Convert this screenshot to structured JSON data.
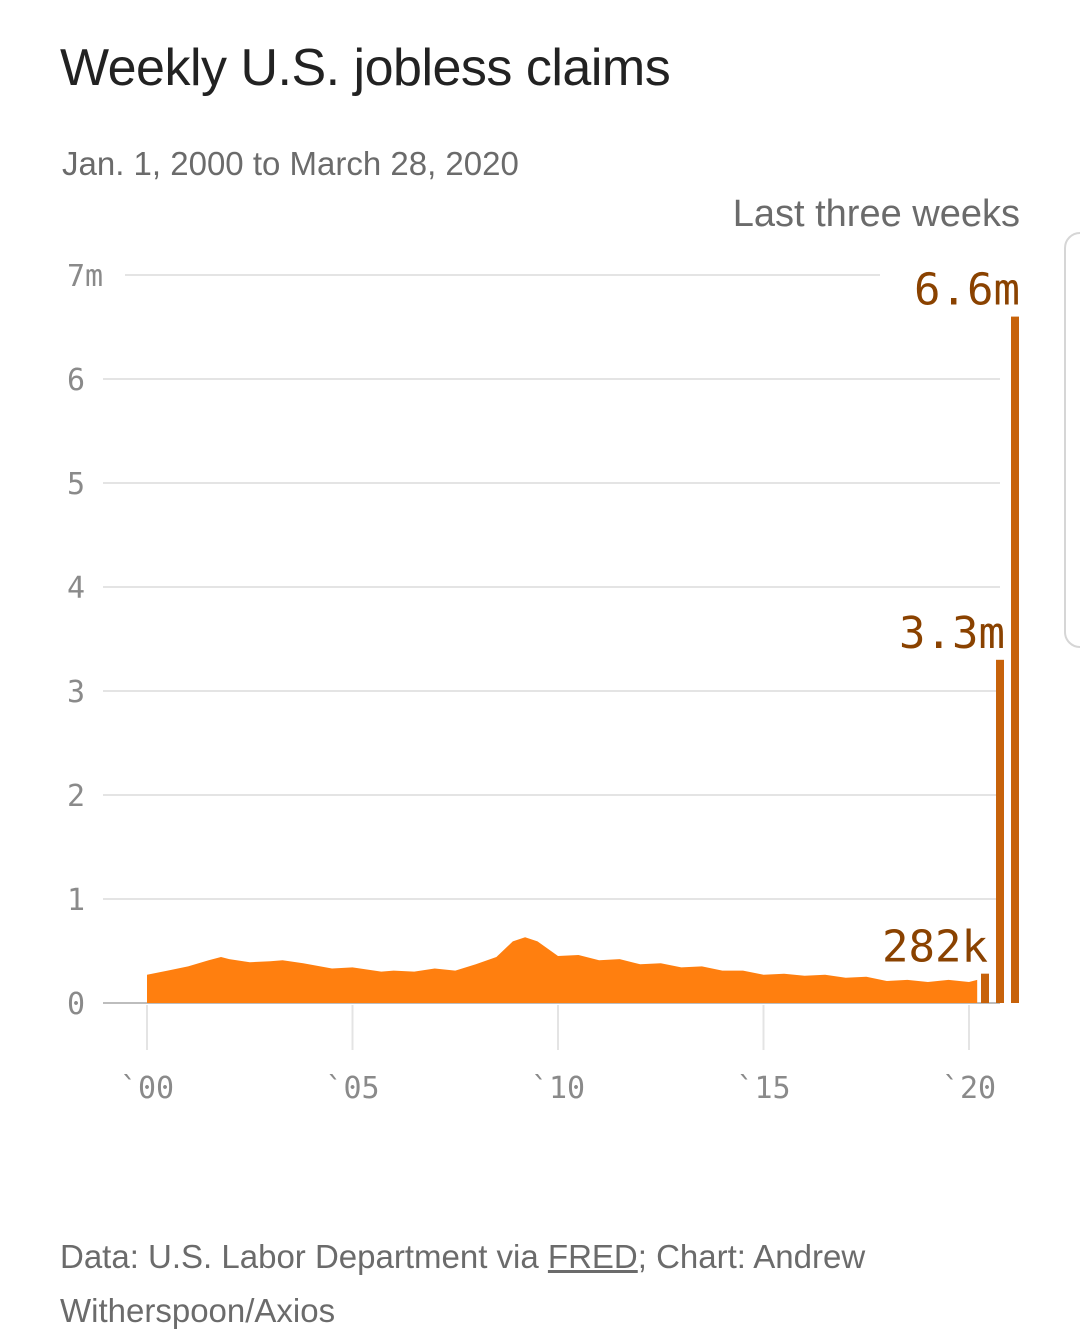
{
  "title": "Weekly U.S. jobless claims",
  "subtitle": "Jan. 1, 2000 to March 28, 2020",
  "annotation_heading": "Last three weeks",
  "source": {
    "prefix": "Data: U.S. Labor Department via ",
    "link": "FRED",
    "suffix": "; Chart: Andrew Witherspoon/Axios"
  },
  "colors": {
    "area": "#ff7f0f",
    "spike_bars": "#c7620a",
    "annotation_text": "#8a4200",
    "grid": "#e4e4e4",
    "tick_text": "#8a8a8a",
    "text": "#222222",
    "muted_text": "#6b6b6b"
  },
  "chart_data": {
    "type": "area",
    "title": "Weekly U.S. jobless claims",
    "subtitle": "Jan. 1, 2000 to March 28, 2020",
    "ylabel": "",
    "xlabel": "",
    "y_unit_label": "m",
    "ylim": [
      0,
      7
    ],
    "y_ticks": [
      0,
      1,
      2,
      3,
      4,
      5,
      6,
      7
    ],
    "y_tick_labels": [
      "0",
      "1",
      "2",
      "3",
      "4",
      "5",
      "6",
      "7m"
    ],
    "x_ticks": [
      2000,
      2005,
      2010,
      2015,
      2020
    ],
    "x_tick_labels": [
      "`00",
      "`05",
      "`10",
      "`15",
      "`20"
    ],
    "grid": true,
    "series": [
      {
        "kind": "area",
        "x": [
          2000.0,
          2000.5,
          2001.0,
          2001.5,
          2001.8,
          2002.0,
          2002.5,
          2003.0,
          2003.3,
          2003.8,
          2004.5,
          2005.0,
          2005.7,
          2006.0,
          2006.5,
          2007.0,
          2007.5,
          2008.0,
          2008.5,
          2008.9,
          2009.2,
          2009.5,
          2010.0,
          2010.5,
          2011.0,
          2011.5,
          2012.0,
          2012.5,
          2013.0,
          2013.5,
          2014.0,
          2014.5,
          2015.0,
          2015.5,
          2016.0,
          2016.5,
          2017.0,
          2017.5,
          2018.0,
          2018.5,
          2019.0,
          2019.5,
          2020.0,
          2020.2
        ],
        "y": [
          0.28,
          0.3,
          0.36,
          0.4,
          0.45,
          0.41,
          0.4,
          0.39,
          0.42,
          0.37,
          0.34,
          0.33,
          0.31,
          0.3,
          0.31,
          0.32,
          0.32,
          0.36,
          0.45,
          0.58,
          0.64,
          0.58,
          0.46,
          0.45,
          0.42,
          0.41,
          0.38,
          0.37,
          0.35,
          0.34,
          0.32,
          0.3,
          0.28,
          0.27,
          0.27,
          0.26,
          0.25,
          0.24,
          0.22,
          0.21,
          0.21,
          0.21,
          0.21,
          0.21
        ]
      }
    ],
    "highlighted_bars": [
      {
        "label": "282k",
        "value": 0.282
      },
      {
        "label": "3.3m",
        "value": 3.3
      },
      {
        "label": "6.6m",
        "value": 6.6
      }
    ]
  }
}
